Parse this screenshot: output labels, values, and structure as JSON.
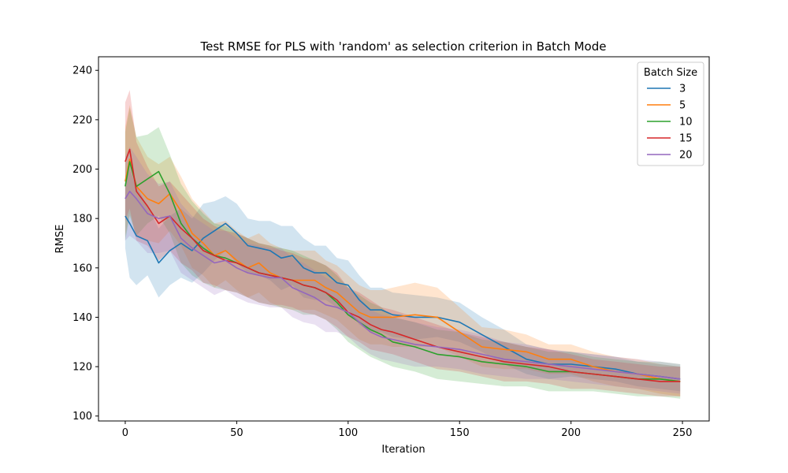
{
  "chart_data": {
    "type": "line",
    "title": "Test RMSE for PLS with 'random' as selection criterion in Batch Mode",
    "xlabel": "Iteration",
    "ylabel": "RMSE",
    "xlim": [
      -12,
      262
    ],
    "ylim": [
      98,
      245.5
    ],
    "xticks": [
      0,
      50,
      100,
      150,
      200,
      250
    ],
    "yticks": [
      100,
      120,
      140,
      160,
      180,
      200,
      220,
      240
    ],
    "grid": false,
    "legend": {
      "title": "Batch Size",
      "position": "top-right"
    },
    "x": [
      0,
      2,
      5,
      10,
      15,
      20,
      25,
      30,
      35,
      40,
      45,
      50,
      55,
      60,
      65,
      70,
      75,
      80,
      85,
      90,
      95,
      100,
      105,
      110,
      115,
      120,
      130,
      140,
      150,
      160,
      170,
      180,
      190,
      200,
      210,
      220,
      230,
      240,
      249
    ],
    "series": [
      {
        "name": "3",
        "color": "#1f77b4",
        "values": [
          181,
          178,
          173,
          171,
          162,
          167,
          170,
          167,
          172,
          175,
          178,
          174,
          169,
          168,
          167,
          164,
          165,
          160,
          158,
          158,
          154,
          153,
          147,
          143,
          143,
          141,
          140,
          140,
          138,
          133,
          128,
          123,
          121,
          121,
          120,
          119,
          117,
          116,
          115
        ],
        "band": [
          13,
          22,
          20,
          14,
          14,
          14,
          14,
          13,
          14,
          12,
          11,
          12,
          11,
          11,
          12,
          13,
          12,
          12,
          11,
          11,
          10,
          10,
          10,
          9,
          9,
          9,
          9,
          8,
          8,
          7,
          7,
          6,
          6,
          5,
          5,
          5,
          5,
          5,
          5
        ]
      },
      {
        "name": "5",
        "color": "#ff7f0e",
        "values": [
          195,
          204,
          193,
          188,
          186,
          190,
          183,
          174,
          170,
          165,
          167,
          163,
          160,
          162,
          158,
          156,
          155,
          155,
          155,
          152,
          150,
          146,
          142,
          140,
          140,
          140,
          141,
          140,
          134,
          128,
          127,
          126,
          123,
          123,
          120,
          118,
          117,
          115,
          114
        ],
        "band": [
          22,
          22,
          20,
          17,
          16,
          15,
          14,
          14,
          13,
          13,
          12,
          12,
          12,
          12,
          12,
          12,
          12,
          12,
          12,
          11,
          11,
          11,
          11,
          11,
          11,
          12,
          13,
          12,
          10,
          8,
          8,
          7,
          6,
          6,
          6,
          6,
          6,
          6,
          6
        ]
      },
      {
        "name": "10",
        "color": "#2ca02c",
        "values": [
          193,
          203,
          193,
          196,
          199,
          190,
          178,
          172,
          168,
          165,
          164,
          162,
          160,
          158,
          157,
          156,
          155,
          153,
          152,
          150,
          146,
          141,
          138,
          135,
          133,
          130,
          128,
          125,
          124,
          122,
          121,
          120,
          118,
          118,
          117,
          116,
          115,
          115,
          114
        ],
        "band": [
          22,
          22,
          20,
          18,
          18,
          16,
          16,
          15,
          14,
          13,
          13,
          12,
          12,
          12,
          12,
          12,
          12,
          12,
          11,
          11,
          11,
          11,
          11,
          11,
          11,
          10,
          10,
          10,
          10,
          9,
          9,
          8,
          8,
          8,
          7,
          7,
          7,
          7,
          7
        ]
      },
      {
        "name": "15",
        "color": "#d62728",
        "values": [
          203,
          208,
          191,
          185,
          178,
          181,
          176,
          172,
          167,
          165,
          163,
          162,
          160,
          158,
          157,
          156,
          155,
          153,
          152,
          150,
          147,
          142,
          140,
          137,
          135,
          134,
          131,
          128,
          126,
          124,
          122,
          121,
          120,
          118,
          117,
          116,
          115,
          114,
          114
        ],
        "band": [
          24,
          24,
          20,
          16,
          15,
          14,
          14,
          13,
          13,
          12,
          12,
          12,
          12,
          12,
          12,
          11,
          11,
          11,
          11,
          11,
          11,
          10,
          10,
          10,
          9,
          9,
          9,
          9,
          8,
          8,
          8,
          7,
          7,
          7,
          6,
          6,
          6,
          6,
          6
        ]
      },
      {
        "name": "20",
        "color": "#9467bd",
        "values": [
          188,
          191,
          188,
          182,
          180,
          181,
          172,
          168,
          165,
          162,
          163,
          160,
          158,
          157,
          156,
          156,
          152,
          150,
          148,
          145,
          144,
          142,
          138,
          134,
          132,
          131,
          129,
          128,
          127,
          125,
          123,
          122,
          121,
          120,
          119,
          118,
          117,
          116,
          115
        ],
        "band": [
          17,
          18,
          17,
          16,
          14,
          14,
          14,
          13,
          13,
          13,
          12,
          12,
          12,
          12,
          12,
          12,
          12,
          12,
          11,
          11,
          10,
          10,
          10,
          9,
          9,
          9,
          9,
          8,
          8,
          8,
          7,
          7,
          6,
          6,
          6,
          6,
          6,
          6,
          6
        ]
      }
    ]
  }
}
